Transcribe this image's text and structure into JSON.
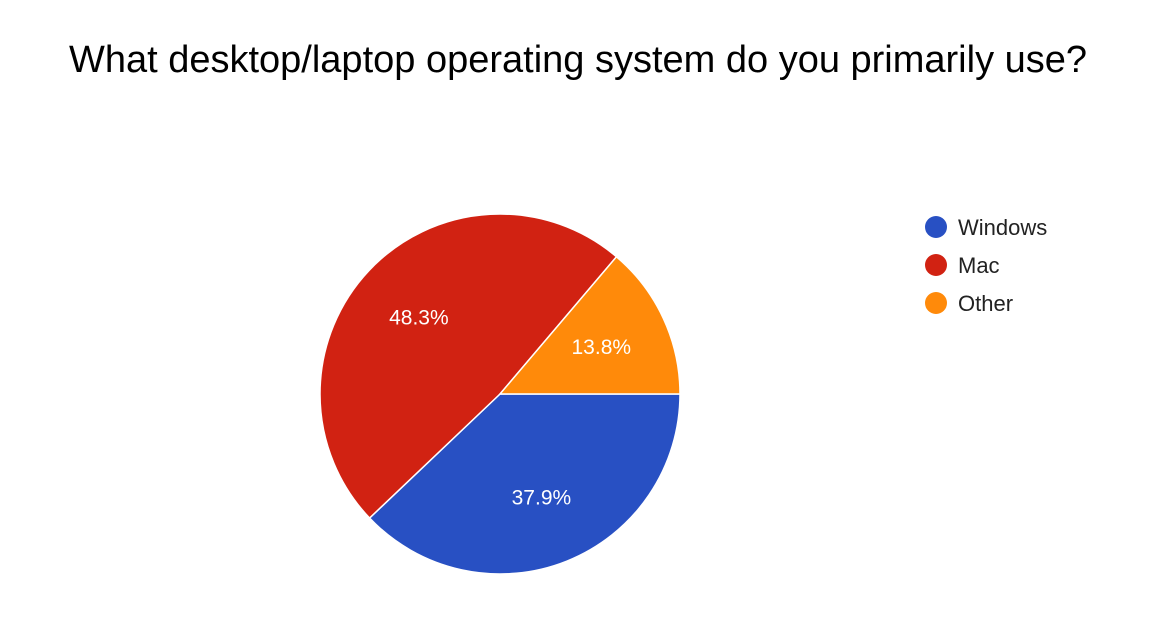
{
  "chart_data": {
    "type": "pie",
    "title": "What desktop/laptop operating system do you primarily use?",
    "categories": [
      "Windows",
      "Mac",
      "Other"
    ],
    "values": [
      37.9,
      48.3,
      13.8
    ],
    "value_labels": [
      "37.9%",
      "48.3%",
      "13.8%"
    ],
    "colors": [
      "#2850C3",
      "#D12212",
      "#FF8A0A"
    ],
    "legend": {
      "position": "right",
      "entries": [
        "Windows",
        "Mac",
        "Other"
      ]
    }
  }
}
